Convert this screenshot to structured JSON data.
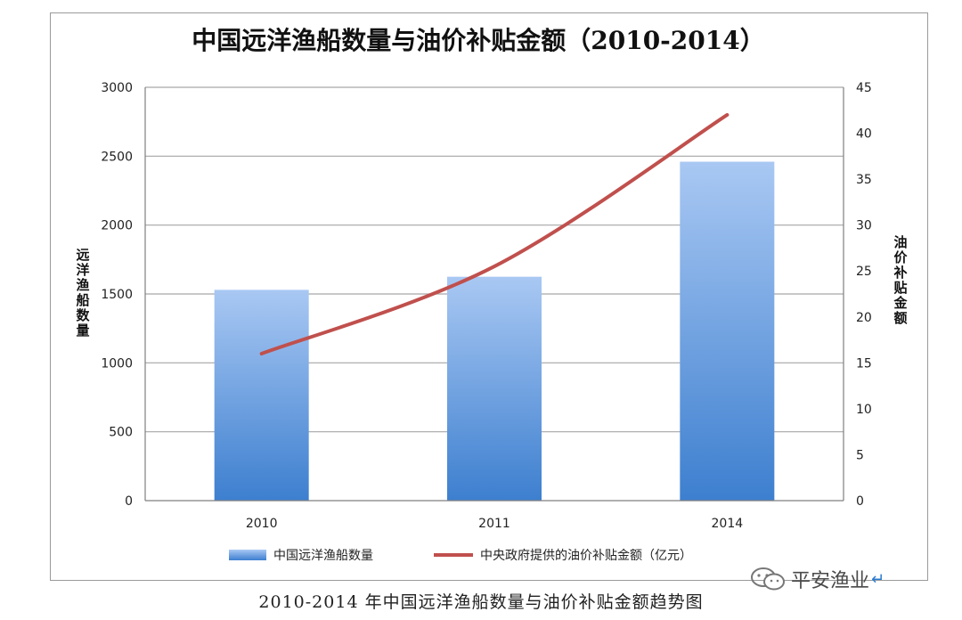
{
  "chart_data": {
    "type": "bar+line",
    "title": "中国远洋渔船数量与油价补贴金额（2010-2014）",
    "categories": [
      "2010",
      "2011",
      "2014"
    ],
    "y_left_label": "远洋渔船数量",
    "y_right_label": "油价补贴金额",
    "y_left_lim": [
      0,
      3000
    ],
    "y_left_ticks": [
      "0",
      "500",
      "1000",
      "1500",
      "2000",
      "2500",
      "3000"
    ],
    "y_right_lim": [
      0,
      45
    ],
    "y_right_ticks": [
      "0",
      "5",
      "10",
      "15",
      "20",
      "25",
      "30",
      "35",
      "40",
      "45"
    ],
    "series": [
      {
        "name": "中国远洋渔船数量",
        "kind": "bar",
        "axis": "left",
        "values": [
          1530,
          1625,
          2460
        ]
      },
      {
        "name": "中央政府提供的油价补贴金额（亿元）",
        "kind": "line",
        "axis": "right",
        "values": [
          16,
          25.5,
          42
        ]
      }
    ],
    "grid": true,
    "legend_position": "bottom",
    "colors": {
      "bar_top": "#a9c8f3",
      "bar_bottom": "#3d7fcf",
      "line": "#c0504d",
      "grid": "#a6a6a6"
    }
  },
  "caption": "2010-2014 年中国远洋渔船数量与油价补贴金额趋势图",
  "watermark": {
    "text": "平安渔业",
    "icon": "wechat-icon"
  }
}
